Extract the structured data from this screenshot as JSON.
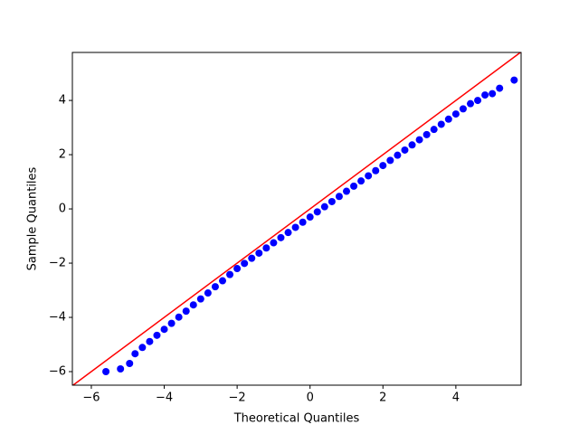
{
  "chart_data": {
    "type": "scatter",
    "xlabel": "Theoretical Quantiles",
    "ylabel": "Sample Quantiles",
    "xlim": [
      -6.52,
      5.79
    ],
    "ylim": [
      -6.5,
      5.77
    ],
    "xticks": [
      {
        "value": -6,
        "label": "−6"
      },
      {
        "value": -4,
        "label": "−4"
      },
      {
        "value": -2,
        "label": "−2"
      },
      0,
      2,
      4
    ],
    "yticks": [
      {
        "value": -6,
        "label": "−6"
      },
      {
        "value": -4,
        "label": "−4"
      },
      {
        "value": -2,
        "label": "−2"
      },
      0,
      2,
      4
    ],
    "series": [
      {
        "type": "scatter",
        "color": "#0000ff",
        "x": [
          -5.6,
          -5.2,
          -4.95,
          -4.8,
          -4.6,
          -4.4,
          -4.2,
          -4.0,
          -3.8,
          -3.6,
          -3.4,
          -3.2,
          -3.0,
          -2.8,
          -2.6,
          -2.4,
          -2.2,
          -2.0,
          -1.8,
          -1.6,
          -1.4,
          -1.2,
          -1.0,
          -0.8,
          -0.6,
          -0.4,
          -0.2,
          0,
          0.2,
          0.4,
          0.6,
          0.8,
          1.0,
          1.2,
          1.4,
          1.6,
          1.8,
          2.0,
          2.2,
          2.4,
          2.6,
          2.8,
          3.0,
          3.2,
          3.4,
          3.6,
          3.8,
          4.0,
          4.2,
          4.4,
          4.6,
          4.8,
          5.0,
          5.2,
          5.6
        ],
        "values": [
          -6.0,
          -5.9,
          -5.7,
          -5.34,
          -5.11,
          -4.89,
          -4.66,
          -4.44,
          -4.22,
          -3.99,
          -3.77,
          -3.54,
          -3.32,
          -3.1,
          -2.87,
          -2.65,
          -2.42,
          -2.2,
          -2.01,
          -1.82,
          -1.63,
          -1.44,
          -1.25,
          -1.06,
          -0.87,
          -0.68,
          -0.49,
          -0.3,
          -0.11,
          0.08,
          0.27,
          0.46,
          0.65,
          0.84,
          1.03,
          1.22,
          1.41,
          1.6,
          1.79,
          1.98,
          2.17,
          2.36,
          2.55,
          2.74,
          2.93,
          3.12,
          3.31,
          3.5,
          3.69,
          3.88,
          4.0,
          4.2,
          4.25,
          4.45,
          4.75
        ]
      },
      {
        "type": "line",
        "color": "#ff0000",
        "x": [
          -6.52,
          5.79
        ],
        "values": [
          -6.52,
          5.79
        ]
      }
    ]
  }
}
